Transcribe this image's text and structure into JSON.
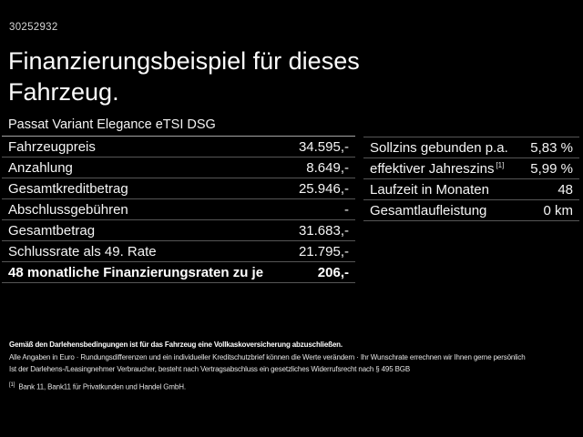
{
  "page": {
    "vehicle_id": "30252932",
    "title": "Finanzierungsbeispiel für dieses Fahrzeug.",
    "subtitle": "Passat Variant Elegance eTSI DSG"
  },
  "finance_table": {
    "rows": [
      {
        "label": "Fahrzeugpreis",
        "value": "34.595,-"
      },
      {
        "label": "Anzahlung",
        "value": "8.649,-"
      },
      {
        "label": "Gesamtkreditbetrag",
        "value": "25.946,-"
      },
      {
        "label": "Abschlussgebühren",
        "value": "-"
      },
      {
        "label": "Gesamtbetrag",
        "value": "31.683,-"
      },
      {
        "label": "Schlussrate als 49. Rate",
        "value": "21.795,-"
      },
      {
        "label": "48 monatliche Finanzierungsraten zu je",
        "value": "206,-"
      }
    ]
  },
  "conditions_table": {
    "rows": [
      {
        "label": "Sollzins gebunden p.a.",
        "value": "5,83 %"
      },
      {
        "label": "effektiver Jahreszins",
        "label_sup": "[1]",
        "value": "5,99 %"
      },
      {
        "label": "Laufzeit in Monaten",
        "value": "48"
      },
      {
        "label": "Gesamtlaufleistung",
        "value": "0 km"
      }
    ]
  },
  "footer": {
    "insurance_note": "Gemäß den Darlehensbedingungen ist für das Fahrzeug eine Vollkaskoversicherung abzuschließen.",
    "disclaimer": "Alle Angaben in Euro · Rundungsdifferenzen und ein individueller Kreditschutzbrief können die Werte verändern · Ihr Wunschrate errechnen wir Ihnen gerne persönlich",
    "legal_note": "Ist der Darlehens-/Leasingnehmer Verbraucher, besteht nach Vertragsabschluss ein gesetzliches Widerrufsrecht nach § 495 BGB",
    "footnote_marker": "[1]",
    "footnote_text": "Bank 11, Bank11 für Privatkunden und Handel GmbH."
  },
  "colors": {
    "background": "#000000",
    "text": "#ffffff",
    "row_separator": "#565656",
    "subtitle_underline": "#a4a4a4"
  }
}
